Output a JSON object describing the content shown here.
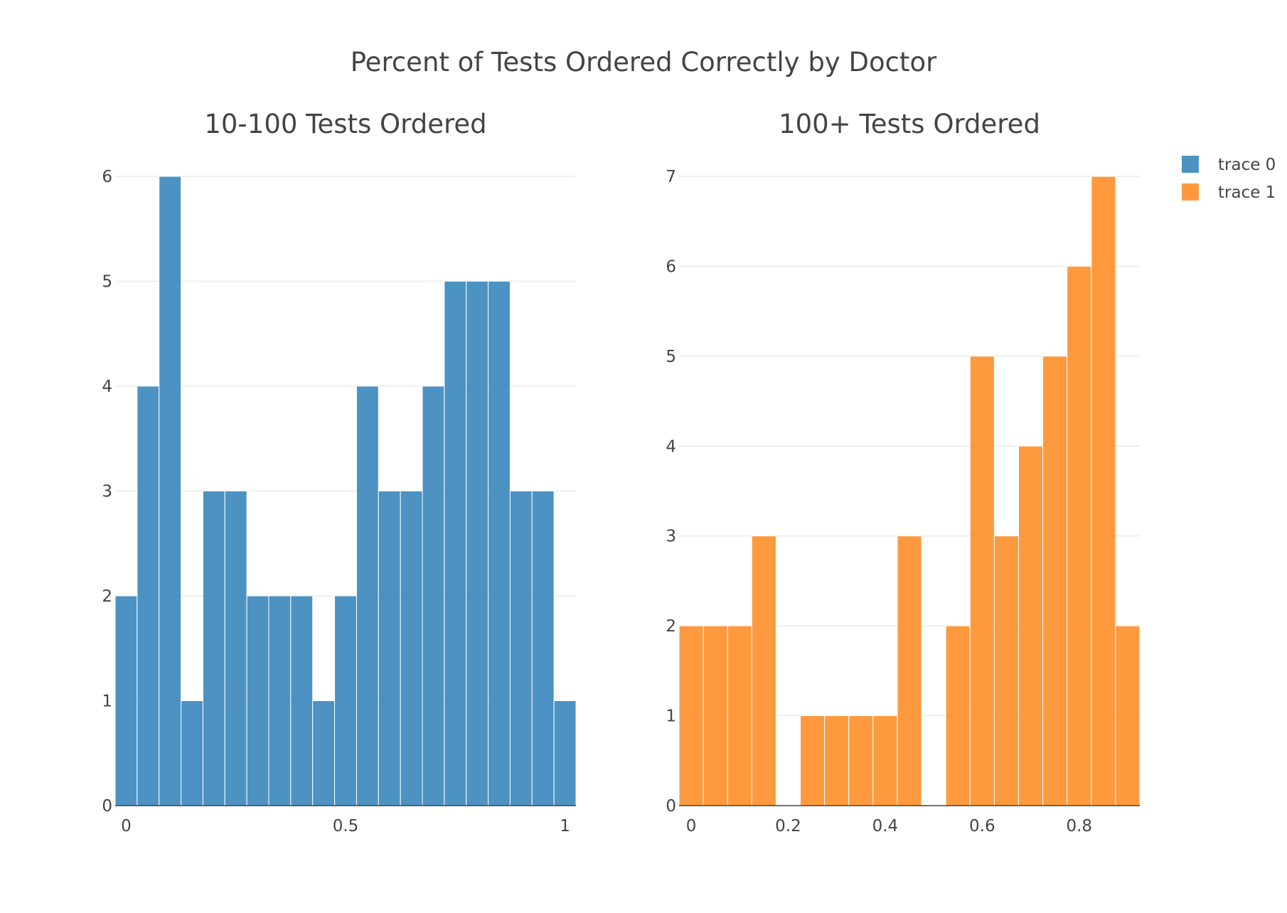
{
  "title": "Percent of Tests Ordered Correctly by Doctor",
  "chart_data": [
    {
      "type": "bar",
      "subtitle": "10-100 Tests Ordered",
      "series_name": "trace 0",
      "color": "#1f77b4",
      "bin_start": 0.0,
      "bin_size": 0.05,
      "values": [
        2,
        4,
        6,
        1,
        3,
        3,
        2,
        2,
        2,
        1,
        2,
        4,
        3,
        3,
        4,
        5,
        5,
        5,
        3,
        3,
        1
      ],
      "xlim": [
        -0.025,
        1.025
      ],
      "ylim": [
        0,
        6
      ],
      "xticks": [
        0,
        0.5,
        1
      ],
      "xtick_labels": [
        "0",
        "0.5",
        "1"
      ],
      "yticks": [
        0,
        1,
        2,
        3,
        4,
        5,
        6
      ],
      "ytick_labels": [
        "0",
        "1",
        "2",
        "3",
        "4",
        "5",
        "6"
      ],
      "grid": true
    },
    {
      "type": "bar",
      "subtitle": "100+ Tests Ordered",
      "series_name": "trace 1",
      "color": "#ff7f0e",
      "bin_start": 0.0,
      "bin_size": 0.05,
      "values": [
        2,
        2,
        2,
        3,
        0,
        1,
        1,
        1,
        1,
        3,
        0,
        2,
        5,
        3,
        4,
        5,
        6,
        7,
        2
      ],
      "xlim": [
        -0.025,
        0.925
      ],
      "ylim": [
        0,
        7
      ],
      "xticks": [
        0,
        0.2,
        0.4,
        0.6,
        0.8
      ],
      "xtick_labels": [
        "0",
        "0.2",
        "0.4",
        "0.6",
        "0.8"
      ],
      "yticks": [
        0,
        1,
        2,
        3,
        4,
        5,
        6,
        7
      ],
      "ytick_labels": [
        "0",
        "1",
        "2",
        "3",
        "4",
        "5",
        "6",
        "7"
      ],
      "grid": true
    }
  ],
  "legend": {
    "placement": "top-right",
    "items": [
      {
        "label": "trace 0",
        "color": "#1f77b4"
      },
      {
        "label": "trace 1",
        "color": "#ff7f0e"
      }
    ]
  }
}
